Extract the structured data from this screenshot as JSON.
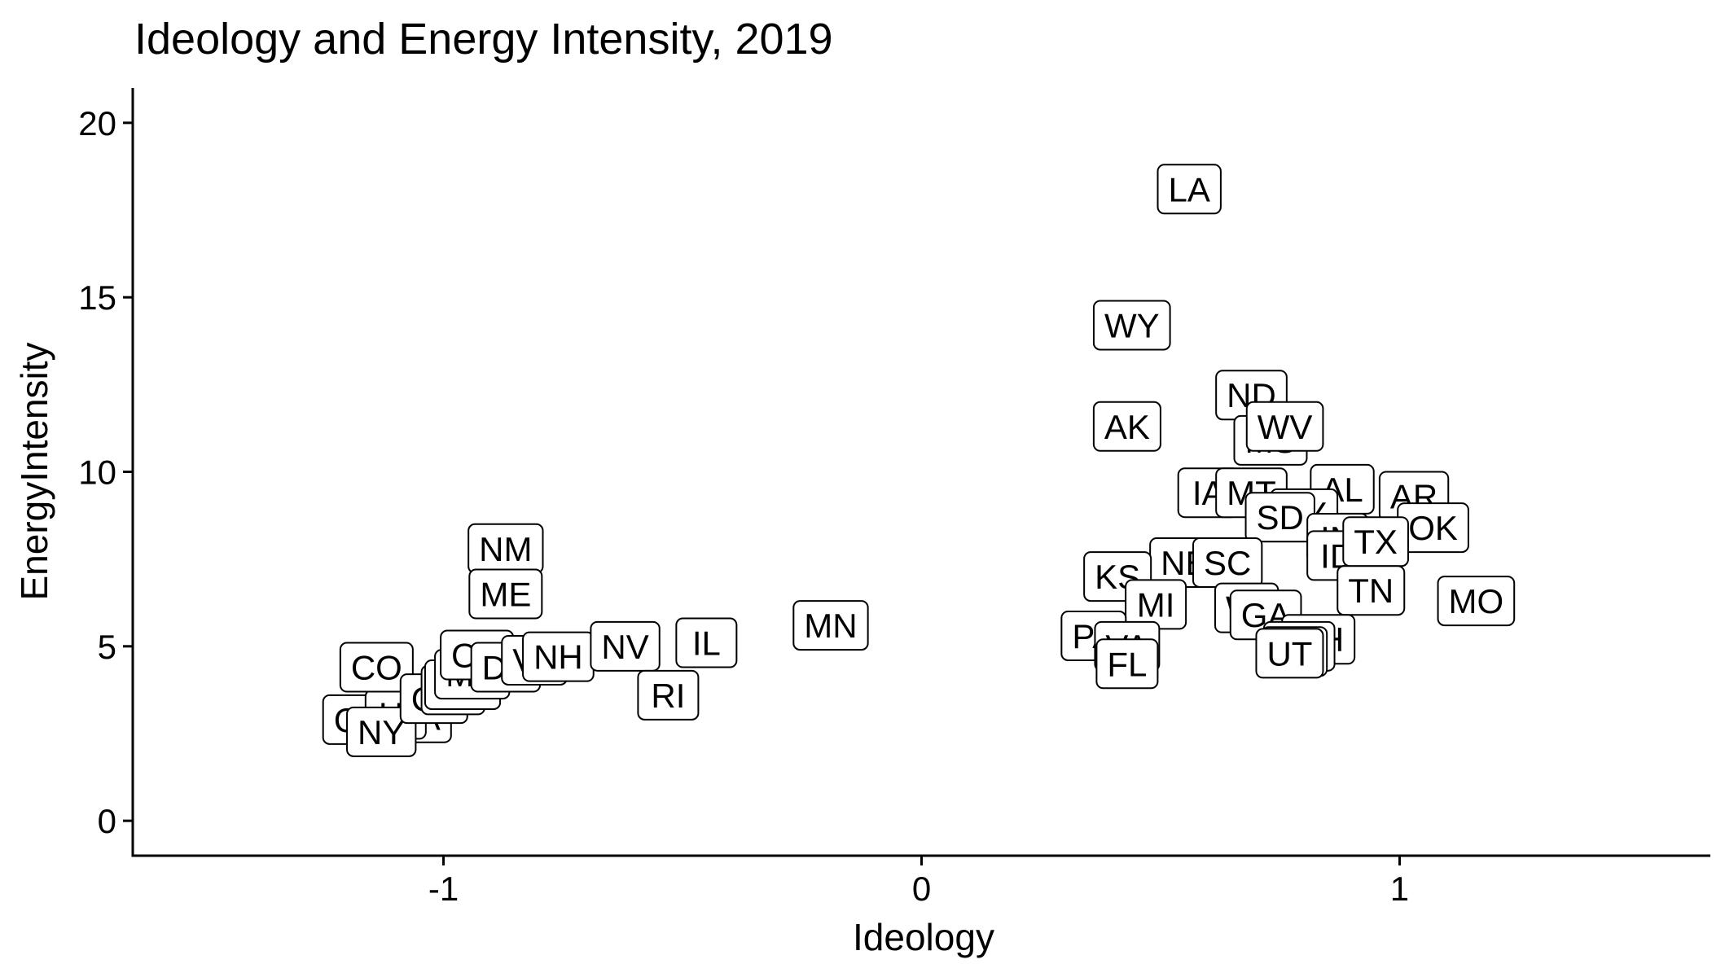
{
  "chart_data": {
    "type": "scatter",
    "title": "Ideology and Energy Intensity, 2019",
    "xlabel": "Ideology",
    "ylabel": "EnergyIntensity",
    "xlim": [
      -1.65,
      1.65
    ],
    "ylim": [
      -1,
      21
    ],
    "xticks": [
      -1,
      0,
      1
    ],
    "yticks": [
      0,
      5,
      10,
      15,
      20
    ],
    "grid": false,
    "legend": "none",
    "points": [
      {
        "label": "CA",
        "x": -1.18,
        "y": 2.9
      },
      {
        "label": "MA",
        "x": -1.06,
        "y": 2.95
      },
      {
        "label": "HI",
        "x": -1.1,
        "y": 3.05
      },
      {
        "label": "NY",
        "x": -1.13,
        "y": 2.55
      },
      {
        "label": "CO",
        "x": -1.14,
        "y": 4.4
      },
      {
        "label": "CT",
        "x": -1.02,
        "y": 3.5
      },
      {
        "label": "NJ",
        "x": -0.98,
        "y": 3.75
      },
      {
        "label": "WA",
        "x": -0.96,
        "y": 3.9
      },
      {
        "label": "MD",
        "x": -0.94,
        "y": 4.2
      },
      {
        "label": "OR",
        "x": -0.93,
        "y": 4.75
      },
      {
        "label": "DE",
        "x": -0.87,
        "y": 4.4
      },
      {
        "label": "VT",
        "x": -0.81,
        "y": 4.6
      },
      {
        "label": "NH",
        "x": -0.76,
        "y": 4.7
      },
      {
        "label": "NV",
        "x": -0.62,
        "y": 5.0
      },
      {
        "label": "IL",
        "x": -0.45,
        "y": 5.1
      },
      {
        "label": "RI",
        "x": -0.53,
        "y": 3.6
      },
      {
        "label": "NM",
        "x": -0.87,
        "y": 7.8
      },
      {
        "label": "ME",
        "x": -0.87,
        "y": 6.5
      },
      {
        "label": "MN",
        "x": -0.19,
        "y": 5.6
      },
      {
        "label": "LA",
        "x": 0.56,
        "y": 18.1
      },
      {
        "label": "WY",
        "x": 0.44,
        "y": 14.2
      },
      {
        "label": "AK",
        "x": 0.43,
        "y": 11.3
      },
      {
        "label": "ND",
        "x": 0.69,
        "y": 12.2
      },
      {
        "label": "MS",
        "x": 0.73,
        "y": 10.9
      },
      {
        "label": "WV",
        "x": 0.76,
        "y": 11.3
      },
      {
        "label": "IA",
        "x": 0.6,
        "y": 9.4
      },
      {
        "label": "MT",
        "x": 0.69,
        "y": 9.4
      },
      {
        "label": "AL",
        "x": 0.88,
        "y": 9.5
      },
      {
        "label": "AR",
        "x": 1.03,
        "y": 9.3
      },
      {
        "label": "KY",
        "x": 0.8,
        "y": 8.8
      },
      {
        "label": "SD",
        "x": 0.75,
        "y": 8.7
      },
      {
        "label": "OK",
        "x": 1.07,
        "y": 8.4
      },
      {
        "label": "IN",
        "x": 0.87,
        "y": 8.1
      },
      {
        "label": "ID",
        "x": 0.87,
        "y": 7.6
      },
      {
        "label": "TX",
        "x": 0.95,
        "y": 8.0
      },
      {
        "label": "NE",
        "x": 0.55,
        "y": 7.4
      },
      {
        "label": "SC",
        "x": 0.64,
        "y": 7.4
      },
      {
        "label": "KS",
        "x": 0.41,
        "y": 7.0
      },
      {
        "label": "TN",
        "x": 0.94,
        "y": 6.6
      },
      {
        "label": "MO",
        "x": 1.16,
        "y": 6.3
      },
      {
        "label": "MI",
        "x": 0.49,
        "y": 6.2
      },
      {
        "label": "WI",
        "x": 0.68,
        "y": 6.1
      },
      {
        "label": "GA",
        "x": 0.72,
        "y": 5.9
      },
      {
        "label": "OH",
        "x": 0.83,
        "y": 5.2
      },
      {
        "label": "NC",
        "x": 0.79,
        "y": 5.0
      },
      {
        "label": "AZ",
        "x": 0.78,
        "y": 4.85
      },
      {
        "label": "UT",
        "x": 0.77,
        "y": 4.8
      },
      {
        "label": "PA",
        "x": 0.36,
        "y": 5.3
      },
      {
        "label": "VA",
        "x": 0.43,
        "y": 5.0
      },
      {
        "label": "FL",
        "x": 0.43,
        "y": 4.5
      }
    ]
  }
}
